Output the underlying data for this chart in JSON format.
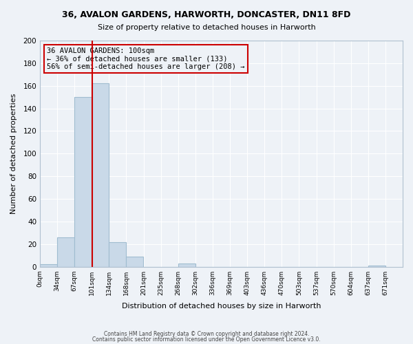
{
  "title1": "36, AVALON GARDENS, HARWORTH, DONCASTER, DN11 8FD",
  "title2": "Size of property relative to detached houses in Harworth",
  "xlabel": "Distribution of detached houses by size in Harworth",
  "ylabel": "Number of detached properties",
  "bin_edges": [
    0,
    33,
    66,
    99,
    132,
    165,
    198,
    231,
    264,
    297,
    330,
    363,
    396,
    429,
    462,
    495,
    528,
    561,
    594,
    627,
    660
  ],
  "bin_labels": [
    "0sqm",
    "34sqm",
    "67sqm",
    "101sqm",
    "134sqm",
    "168sqm",
    "201sqm",
    "235sqm",
    "268sqm",
    "302sqm",
    "336sqm",
    "369sqm",
    "403sqm",
    "436sqm",
    "470sqm",
    "503sqm",
    "537sqm",
    "570sqm",
    "604sqm",
    "637sqm",
    "671sqm"
  ],
  "bar_heights": [
    2,
    26,
    150,
    162,
    22,
    9,
    0,
    0,
    3,
    0,
    0,
    0,
    0,
    0,
    0,
    0,
    0,
    0,
    0,
    1
  ],
  "bar_color": "#c9d9e8",
  "bar_edgecolor": "#a0bcd0",
  "property_size": 100,
  "vline_color": "#cc0000",
  "ylim": [
    0,
    200
  ],
  "yticks": [
    0,
    20,
    40,
    60,
    80,
    100,
    120,
    140,
    160,
    180,
    200
  ],
  "annotation_title": "36 AVALON GARDENS: 100sqm",
  "annotation_line1": "← 36% of detached houses are smaller (133)",
  "annotation_line2": "56% of semi-detached houses are larger (208) →",
  "annotation_box_color": "#cc0000",
  "background_color": "#eef2f7",
  "grid_color": "#ffffff",
  "footer1": "Contains HM Land Registry data © Crown copyright and database right 2024.",
  "footer2": "Contains public sector information licensed under the Open Government Licence v3.0."
}
